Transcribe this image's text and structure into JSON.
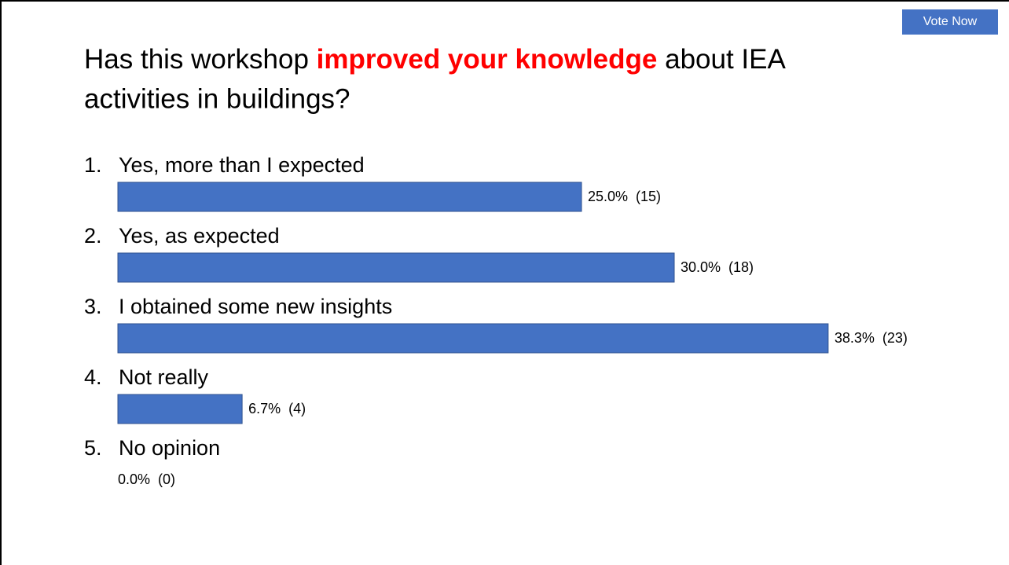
{
  "button": "Vote Now",
  "chart_data": {
    "type": "bar",
    "title": {
      "before": "Has this workshop ",
      "highlight": "improved your knowledge",
      "after_line1": " about IEA",
      "line2": "activities in buildings?"
    },
    "highlight_color": "#ff0000",
    "item_numbers": [
      "1.",
      "2.",
      "3.",
      "4.",
      "5."
    ],
    "categories": [
      "Yes, more than I expected",
      "Yes, as expected",
      "I obtained some new insights",
      "Not really",
      "No opinion"
    ],
    "values": [
      25.0,
      30.0,
      38.3,
      6.7,
      0.0
    ],
    "counts": [
      15,
      18,
      23,
      4,
      0
    ],
    "value_labels": [
      "25.0%  (15)",
      "30.0%  (18)",
      "38.3%  (23)",
      "6.7%  (4)",
      "0.0%  (0)"
    ],
    "color": "#4472c4"
  }
}
